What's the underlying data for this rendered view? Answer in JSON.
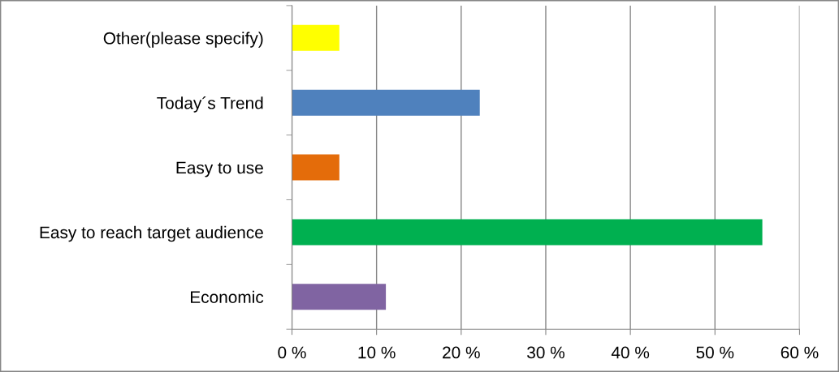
{
  "chart_data": {
    "type": "bar",
    "orientation": "horizontal",
    "categories": [
      "Other(please specify)",
      "Today´s Trend",
      "Easy to use",
      "Easy to reach target audience",
      "Economic"
    ],
    "values": [
      5.6,
      22.2,
      5.6,
      55.6,
      11.1
    ],
    "colors": [
      "#ffff00",
      "#4f81bd",
      "#e46c0a",
      "#00b050",
      "#8064a2"
    ],
    "xlim": [
      0,
      60
    ],
    "xticks": [
      {
        "value": 0,
        "label": "0 %"
      },
      {
        "value": 10,
        "label": "10 %"
      },
      {
        "value": 20,
        "label": "20 %"
      },
      {
        "value": 30,
        "label": "30 %"
      },
      {
        "value": 40,
        "label": "40 %"
      },
      {
        "value": 50,
        "label": "50 %"
      },
      {
        "value": 60,
        "label": "60 %"
      }
    ],
    "grid": "x",
    "legend": false
  }
}
